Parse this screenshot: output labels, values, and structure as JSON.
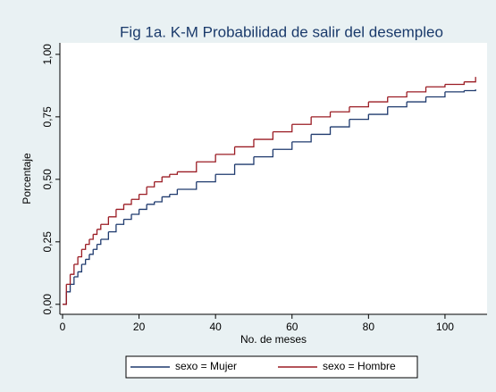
{
  "chart_data": {
    "type": "line",
    "step": true,
    "title": "Fig 1a. K-M Probabilidad de salir del desempleo",
    "x_label": "No. de meses",
    "y_label": "Porcentaje",
    "x": [
      0,
      1,
      2,
      3,
      4,
      5,
      6,
      7,
      8,
      9,
      10,
      12,
      14,
      16,
      18,
      20,
      22,
      24,
      26,
      28,
      30,
      35,
      40,
      45,
      50,
      55,
      60,
      65,
      70,
      75,
      80,
      85,
      90,
      95,
      100,
      105,
      108
    ],
    "series": [
      {
        "name": "sexo = Mujer",
        "color": "#1f3a6e",
        "values": [
          0,
          0.05,
          0.08,
          0.11,
          0.13,
          0.16,
          0.18,
          0.2,
          0.22,
          0.24,
          0.26,
          0.29,
          0.32,
          0.34,
          0.36,
          0.38,
          0.4,
          0.41,
          0.43,
          0.44,
          0.46,
          0.49,
          0.52,
          0.56,
          0.59,
          0.62,
          0.65,
          0.68,
          0.71,
          0.74,
          0.76,
          0.79,
          0.81,
          0.83,
          0.85,
          0.855,
          0.86
        ]
      },
      {
        "name": "sexo = Hombre",
        "color": "#9b1c24",
        "values": [
          0,
          0.08,
          0.12,
          0.16,
          0.19,
          0.22,
          0.24,
          0.26,
          0.28,
          0.3,
          0.32,
          0.35,
          0.38,
          0.4,
          0.42,
          0.44,
          0.47,
          0.49,
          0.51,
          0.52,
          0.53,
          0.57,
          0.6,
          0.63,
          0.66,
          0.69,
          0.72,
          0.75,
          0.77,
          0.79,
          0.81,
          0.83,
          0.85,
          0.87,
          0.88,
          0.89,
          0.91
        ]
      }
    ],
    "xlim": [
      -0.7,
      111
    ],
    "xticks": [
      0,
      20,
      40,
      60,
      80,
      100
    ],
    "ylim": [
      -0.04,
      1.046
    ],
    "yticks": [
      {
        "value": 0,
        "label": "0,00"
      },
      {
        "value": 0.25,
        "label": "0,25"
      },
      {
        "value": 0.5,
        "label": "0,50"
      },
      {
        "value": 0.75,
        "label": "0,75"
      },
      {
        "value": 1,
        "label": "1,00"
      }
    ],
    "legend": "bottom"
  }
}
